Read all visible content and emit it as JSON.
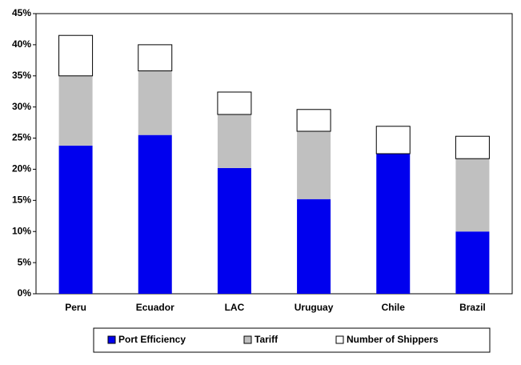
{
  "chart_data": {
    "type": "stacked_bar",
    "categories": [
      "Peru",
      "Ecuador",
      "LAC",
      "Uruguay",
      "Chile",
      "Brazil"
    ],
    "series": [
      {
        "name": "Port Efficiency",
        "color": "#0000ee",
        "values": [
          23.8,
          25.5,
          20.2,
          15.2,
          22.5,
          10
        ]
      },
      {
        "name": "Tariff",
        "color": "#c0c0c0",
        "values": [
          11.2,
          10.3,
          8.6,
          10.9,
          0,
          11.7
        ]
      },
      {
        "name": "Number of Shippers",
        "color": "#ffffff",
        "values": [
          6.5,
          4.2,
          3.6,
          3.5,
          4.4,
          3.6
        ]
      }
    ],
    "ylim": [
      0,
      45
    ],
    "yticks": [
      {
        "value": 0,
        "label": "0%"
      },
      {
        "value": 5,
        "label": "5%"
      },
      {
        "value": 10,
        "label": "10%"
      },
      {
        "value": 15,
        "label": "15%"
      },
      {
        "value": 20,
        "label": "20%"
      },
      {
        "value": 25,
        "label": "25%"
      },
      {
        "value": 30,
        "label": "30%"
      },
      {
        "value": 35,
        "label": "35%"
      },
      {
        "value": 40,
        "label": "40%"
      },
      {
        "value": 45,
        "label": "45%"
      }
    ]
  }
}
